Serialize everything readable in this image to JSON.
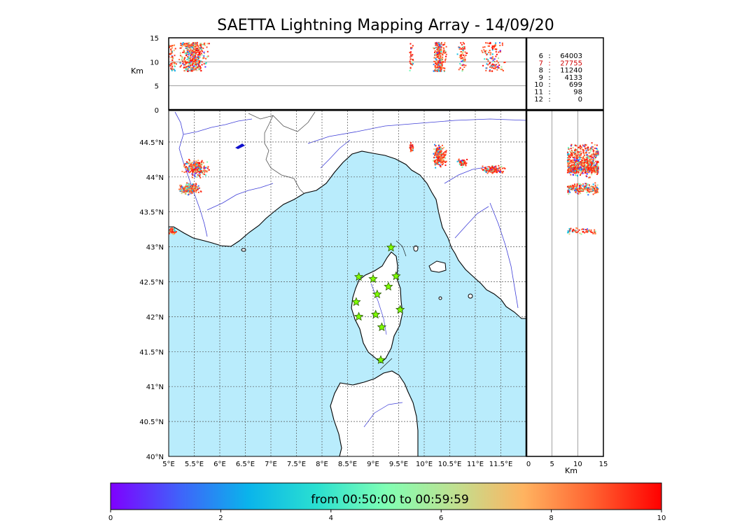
{
  "title": "SAETTA Lightning Mapping Array - 14/09/20",
  "map": {
    "lon_labels": [
      "5°E",
      "5.5°E",
      "6°E",
      "6.5°E",
      "7°E",
      "7.5°E",
      "8°E",
      "8.5°E",
      "9°E",
      "9.5°E",
      "10°E",
      "10.5°E",
      "11°E",
      "11.5°E"
    ],
    "lat_labels": [
      "40°N",
      "40.5°N",
      "41°N",
      "41.5°N",
      "42°N",
      "42.5°N",
      "43°N",
      "43.5°N",
      "44°N",
      "44.5°N"
    ],
    "lon_range": [
      5.0,
      12.0
    ],
    "lat_range": [
      40.0,
      44.95
    ],
    "colors": {
      "sea": "#b9ecfc",
      "land": "#ffffff",
      "rivers": "#3f3fd8",
      "borders": "#555555",
      "coast": "#000000",
      "stations": "#7fff00"
    }
  },
  "top_panel": {
    "ylabel": "Km",
    "yticks": [
      "0",
      "5",
      "10",
      "15"
    ],
    "yrange": [
      0,
      15
    ]
  },
  "side_panel": {
    "xlabel": "Km",
    "xticks": [
      "0",
      "5",
      "10",
      "15"
    ],
    "xrange": [
      0,
      15
    ]
  },
  "counts": [
    {
      "key": "6",
      "sep": ":",
      "value": "64003",
      "color": "#000000"
    },
    {
      "key": "7",
      "sep": ":",
      "value": "27755",
      "color": "#d00000"
    },
    {
      "key": "8",
      "sep": ":",
      "value": "11240",
      "color": "#000000"
    },
    {
      "key": "9",
      "sep": ":",
      "value": "4133",
      "color": "#000000"
    },
    {
      "key": "10",
      "sep": ":",
      "value": "699",
      "color": "#000000"
    },
    {
      "key": "11",
      "sep": ":",
      "value": "98",
      "color": "#000000"
    },
    {
      "key": "12",
      "sep": ":",
      "value": "0",
      "color": "#000000"
    }
  ],
  "colorbar": {
    "label": "from 00:50:00 to 00:59:59",
    "ticks": [
      "0",
      "2",
      "4",
      "6",
      "8",
      "10"
    ],
    "range": [
      0,
      10
    ],
    "colormap": "rainbow"
  },
  "stations": [
    {
      "lon": 9.35,
      "lat": 42.99
    },
    {
      "lon": 8.72,
      "lat": 42.57
    },
    {
      "lon": 9.0,
      "lat": 42.54
    },
    {
      "lon": 9.45,
      "lat": 42.58
    },
    {
      "lon": 9.3,
      "lat": 42.43
    },
    {
      "lon": 9.08,
      "lat": 42.32
    },
    {
      "lon": 8.67,
      "lat": 42.21
    },
    {
      "lon": 9.53,
      "lat": 42.1
    },
    {
      "lon": 8.72,
      "lat": 42.0
    },
    {
      "lon": 9.05,
      "lat": 42.03
    },
    {
      "lon": 9.17,
      "lat": 41.85
    },
    {
      "lon": 9.15,
      "lat": 41.38
    }
  ],
  "lightning_clusters": [
    {
      "lon": 5.55,
      "lat": 44.12,
      "dlon": 0.3,
      "dlat": 0.15,
      "n": 260
    },
    {
      "lon": 5.4,
      "lat": 43.83,
      "dlon": 0.28,
      "dlat": 0.1,
      "n": 200
    },
    {
      "lon": 5.05,
      "lat": 43.23,
      "dlon": 0.12,
      "dlat": 0.07,
      "n": 60
    },
    {
      "lon": 10.3,
      "lat": 44.3,
      "dlon": 0.16,
      "dlat": 0.2,
      "n": 240
    },
    {
      "lon": 9.75,
      "lat": 44.42,
      "dlon": 0.06,
      "dlat": 0.08,
      "n": 30
    },
    {
      "lon": 10.75,
      "lat": 44.2,
      "dlon": 0.12,
      "dlat": 0.08,
      "n": 60
    },
    {
      "lon": 11.35,
      "lat": 44.1,
      "dlon": 0.28,
      "dlat": 0.07,
      "n": 120
    }
  ]
}
